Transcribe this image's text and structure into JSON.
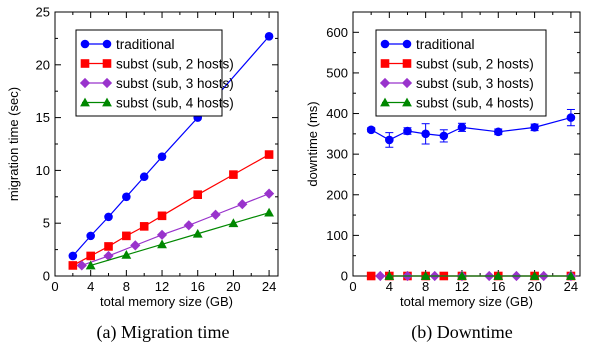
{
  "chart_data": [
    {
      "type": "line",
      "caption": "(a) Migration time",
      "xlabel": "total memory size (GB)",
      "ylabel": "migration time (sec)",
      "xlim": [
        0,
        25
      ],
      "ylim": [
        0,
        25
      ],
      "xticks": [
        0,
        4,
        8,
        12,
        16,
        20,
        24
      ],
      "yticks": [
        0,
        5,
        10,
        15,
        20,
        25
      ],
      "legend_position": "top-left",
      "series": [
        {
          "name": "traditional",
          "marker": "circle",
          "color": "#0000ff",
          "x": [
            2,
            4,
            6,
            8,
            10,
            12,
            16,
            24
          ],
          "y": [
            1.9,
            3.8,
            5.6,
            7.5,
            9.4,
            11.3,
            15.0,
            22.7
          ]
        },
        {
          "name": "subst (sub, 2 hosts)",
          "marker": "square",
          "color": "#ff0000",
          "x": [
            2,
            4,
            6,
            8,
            10,
            12,
            16,
            20,
            24
          ],
          "y": [
            1.0,
            1.9,
            2.8,
            3.8,
            4.7,
            5.7,
            7.7,
            9.6,
            11.5
          ]
        },
        {
          "name": "subst (sub, 3 hosts)",
          "marker": "diamond",
          "color": "#9933cc",
          "x": [
            3,
            6,
            9,
            12,
            15,
            18,
            21,
            24
          ],
          "y": [
            1.0,
            1.9,
            2.9,
            3.9,
            4.8,
            5.8,
            6.8,
            7.8
          ]
        },
        {
          "name": "subst (sub, 4 hosts)",
          "marker": "triangle",
          "color": "#008800",
          "x": [
            4,
            8,
            12,
            16,
            20,
            24
          ],
          "y": [
            1.0,
            2.0,
            3.0,
            4.0,
            5.0,
            6.0
          ]
        }
      ]
    },
    {
      "type": "line",
      "caption": "(b) Downtime",
      "xlabel": "total memory size (GB)",
      "ylabel": "downtime (ms)",
      "xlim": [
        0,
        25
      ],
      "ylim": [
        0,
        650
      ],
      "xticks": [
        0,
        4,
        8,
        12,
        16,
        20,
        24
      ],
      "yticks": [
        0,
        100,
        200,
        300,
        400,
        500,
        600
      ],
      "legend_position": "top-left",
      "series": [
        {
          "name": "traditional",
          "marker": "circle",
          "color": "#0000ff",
          "x": [
            2,
            4,
            6,
            8,
            10,
            12,
            16,
            20,
            24
          ],
          "y": [
            360,
            335,
            357,
            350,
            345,
            366,
            355,
            366,
            390
          ],
          "err": [
            5,
            18,
            8,
            25,
            15,
            10,
            7,
            8,
            20
          ]
        },
        {
          "name": "subst (sub, 2 hosts)",
          "marker": "square",
          "color": "#ff0000",
          "x": [
            2,
            4,
            6,
            8,
            10,
            12,
            16,
            20,
            24
          ],
          "y": [
            0,
            0,
            0,
            0,
            0,
            0,
            0,
            0,
            0
          ]
        },
        {
          "name": "subst (sub, 3 hosts)",
          "marker": "diamond",
          "color": "#9933cc",
          "x": [
            3,
            6,
            9,
            12,
            15,
            18,
            21,
            24
          ],
          "y": [
            0,
            0,
            0,
            0,
            0,
            0,
            0,
            0
          ]
        },
        {
          "name": "subst (sub, 4 hosts)",
          "marker": "triangle",
          "color": "#008800",
          "x": [
            4,
            8,
            12,
            16,
            20,
            24
          ],
          "y": [
            0,
            0,
            0,
            0,
            0,
            0
          ]
        }
      ]
    }
  ]
}
